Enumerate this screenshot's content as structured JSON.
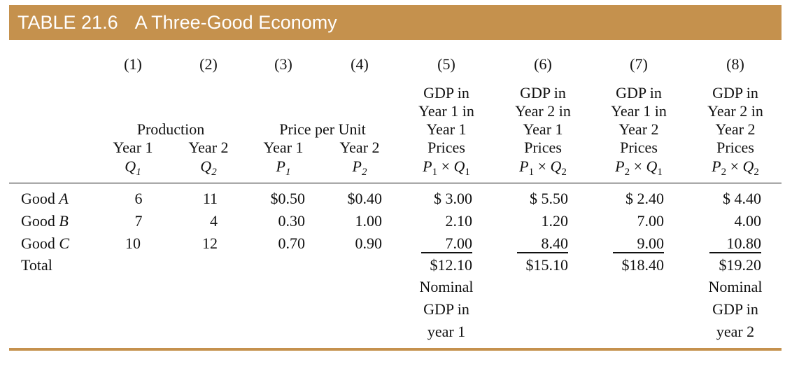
{
  "table": {
    "number": "TABLE 21.6",
    "title": "A Three-Good Economy",
    "column_numbers": [
      "(1)",
      "(2)",
      "(3)",
      "(4)",
      "(5)",
      "(6)",
      "(7)",
      "(8)"
    ],
    "group_headers": {
      "production": "Production",
      "price_per_unit": "Price per Unit"
    },
    "year_labels": [
      "Year 1",
      "Year 2",
      "Year 1",
      "Year 2"
    ],
    "symbols": [
      {
        "letter": "Q",
        "sub": "1"
      },
      {
        "letter": "Q",
        "sub": "2"
      },
      {
        "letter": "P",
        "sub": "1"
      },
      {
        "letter": "P",
        "sub": "2"
      }
    ],
    "gdp_headers": [
      {
        "lines": [
          "GDP in",
          "Year 1 in",
          "Year 1",
          "Prices"
        ],
        "formula": {
          "p": "P",
          "ps": "1",
          "op": "×",
          "q": "Q",
          "qs": "1"
        }
      },
      {
        "lines": [
          "GDP in",
          "Year 2 in",
          "Year 1",
          "Prices"
        ],
        "formula": {
          "p": "P",
          "ps": "1",
          "op": "×",
          "q": "Q",
          "qs": "2"
        }
      },
      {
        "lines": [
          "GDP in",
          "Year 1 in",
          "Year 2",
          "Prices"
        ],
        "formula": {
          "p": "P",
          "ps": "2",
          "op": "×",
          "q": "Q",
          "qs": "1"
        }
      },
      {
        "lines": [
          "GDP in",
          "Year 2 in",
          "Year 2",
          "Prices"
        ],
        "formula": {
          "p": "P",
          "ps": "2",
          "op": "×",
          "q": "Q",
          "qs": "2"
        }
      }
    ],
    "rows": [
      {
        "prefix": "Good ",
        "good": "A",
        "cells": [
          "6",
          "11",
          "$0.50",
          "$0.40",
          "$ 3.00",
          "$ 5.50",
          "$ 2.40",
          "$ 4.40"
        ]
      },
      {
        "prefix": "Good ",
        "good": "B",
        "cells": [
          "7",
          "4",
          "0.30",
          "1.00",
          "2.10",
          "1.20",
          "7.00",
          "4.00"
        ]
      },
      {
        "prefix": "Good ",
        "good": "C",
        "cells": [
          "10",
          "12",
          "0.70",
          "0.90",
          "7.00",
          "8.40",
          "9.00",
          "10.80"
        ]
      }
    ],
    "total": {
      "label": "Total",
      "values": [
        "$12.10",
        "$15.10",
        "$18.40",
        "$19.20"
      ]
    },
    "notes": {
      "col5": [
        "Nominal",
        "GDP in",
        "year 1"
      ],
      "col8": [
        "Nominal",
        "GDP in",
        "year 2"
      ]
    },
    "colors": {
      "title_bar": "#c5914d",
      "title_text": "#ffffff",
      "rule": "#111111",
      "bottom_rule": "#c5914d"
    }
  }
}
